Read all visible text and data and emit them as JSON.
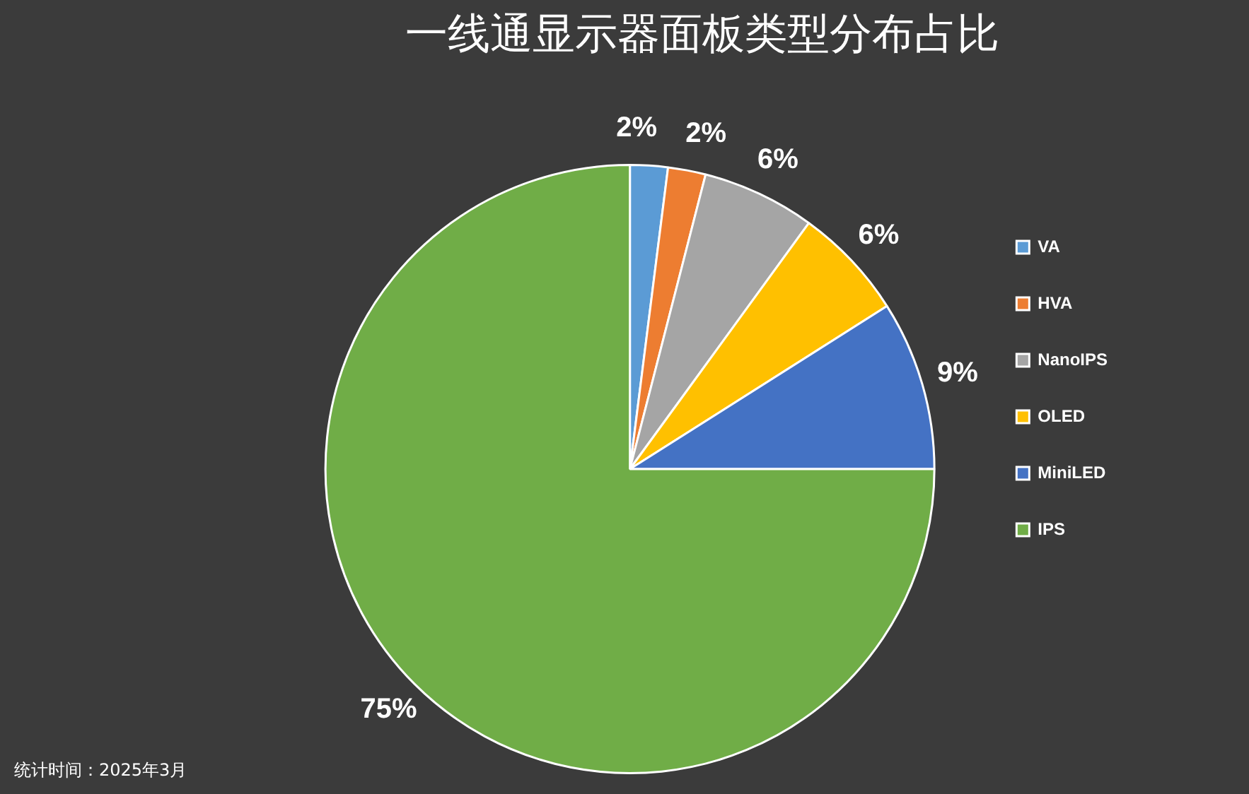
{
  "chart_data": {
    "type": "pie",
    "title": "一线通显示器面板类型分布占比",
    "categories": [
      "VA",
      "HVA",
      "NanoIPS",
      "OLED",
      "MiniLED",
      "IPS"
    ],
    "values": [
      2,
      2,
      6,
      6,
      9,
      75
    ],
    "value_labels": [
      "2%",
      "2%",
      "6%",
      "6%",
      "9%",
      "75%"
    ],
    "colors": [
      "#5b9bd5",
      "#ed7d31",
      "#a5a5a5",
      "#ffc000",
      "#4472c4",
      "#70ad47"
    ],
    "legend": "right",
    "annotations": [
      "统计时间：2025年3月"
    ]
  }
}
